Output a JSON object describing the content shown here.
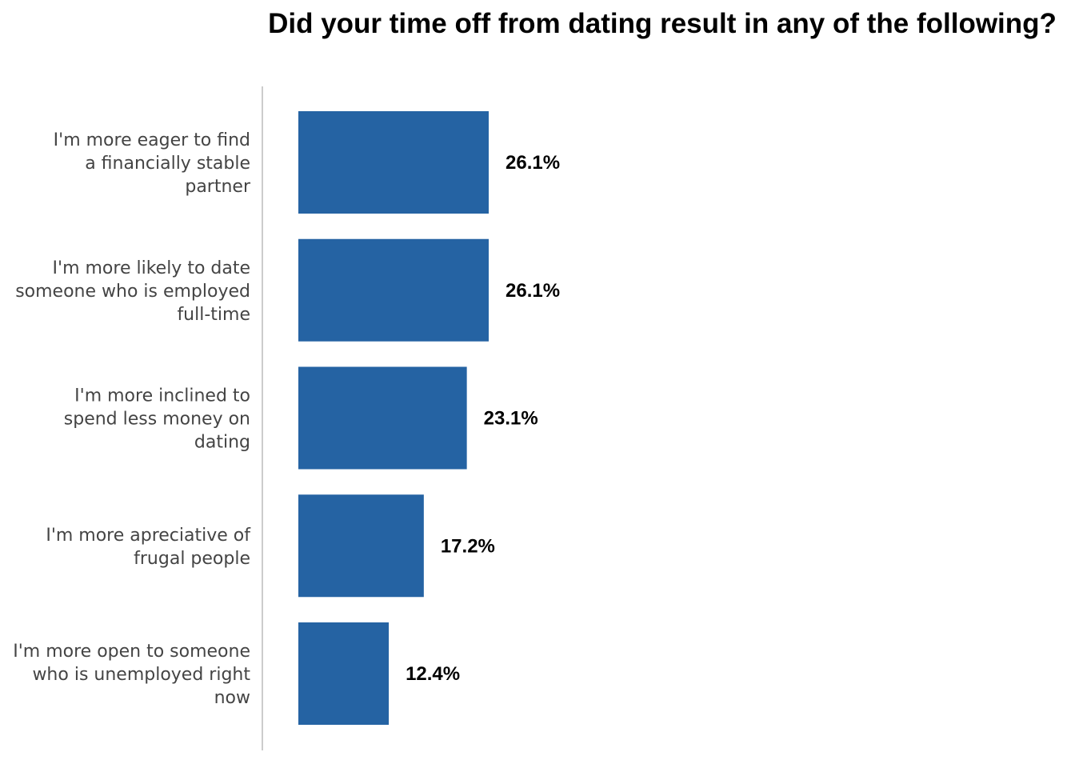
{
  "chart_data": {
    "type": "bar",
    "orientation": "horizontal",
    "title": "Did your time off from dating result in any of the following?",
    "categories": [
      "I'm more eager to find a financially stable partner",
      "I'm more likely to date someone who is employed full-time",
      "I'm more inclined to spend less money on dating",
      "I'm more apreciative of frugal people",
      "I'm more open to someone who is unemployed right now"
    ],
    "category_lines": [
      [
        "I'm more eager to find",
        "a financially stable",
        "partner"
      ],
      [
        "I'm more likely to date",
        "someone who is employed",
        "full-time"
      ],
      [
        "I'm more inclined to",
        "spend less money on",
        "dating"
      ],
      [
        "I'm more apreciative of",
        "frugal people"
      ],
      [
        "I'm more open to someone",
        "who is unemployed right",
        "now"
      ]
    ],
    "values": [
      26.1,
      26.1,
      23.1,
      17.2,
      12.4
    ],
    "value_labels": [
      "26.1%",
      "26.1%",
      "23.1%",
      "17.2%",
      "12.4%"
    ],
    "xlabel": "",
    "ylabel": "",
    "xlim": [
      0,
      100
    ],
    "grid": false,
    "bar_color": "#2563a3"
  }
}
